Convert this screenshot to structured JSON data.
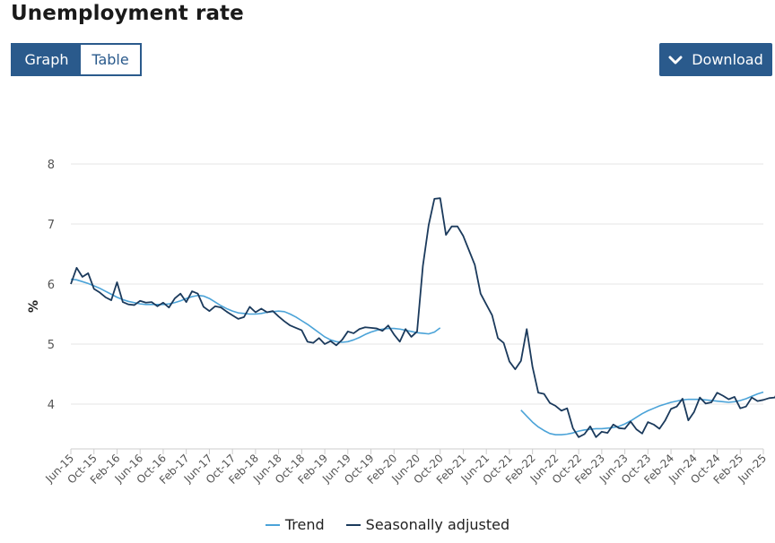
{
  "header": {
    "title": "Unemployment rate"
  },
  "toolbar": {
    "graph_label": "Graph",
    "table_label": "Table",
    "download_label": "Download"
  },
  "colors": {
    "accent": "#2a5a8c",
    "trend": "#4ba3d8",
    "seasonally_adjusted": "#1b3a5c",
    "grid": "#e6e6e6"
  },
  "legend": {
    "trend_label": "Trend",
    "sa_label": "Seasonally adjusted"
  },
  "chart_data": {
    "type": "line",
    "title": "Unemployment rate",
    "xlabel": "",
    "ylabel": "%",
    "ylim": [
      3.25,
      8
    ],
    "yticks": [
      4,
      5,
      6,
      7,
      8
    ],
    "grid": true,
    "legend_position": "bottom",
    "x_start": "Jun-15",
    "x_end": "Jun-25",
    "x_ticks": [
      "Jun-15",
      "Oct-15",
      "Feb-16",
      "Jun-16",
      "Oct-16",
      "Feb-17",
      "Jun-17",
      "Oct-17",
      "Feb-18",
      "Jun-18",
      "Oct-18",
      "Feb-19",
      "Jun-19",
      "Oct-19",
      "Feb-20",
      "Jun-20",
      "Oct-20",
      "Feb-21",
      "Jun-21",
      "Oct-21",
      "Feb-22",
      "Jun-22",
      "Oct-22",
      "Feb-23",
      "Jun-23",
      "Oct-23",
      "Feb-24",
      "Jun-24",
      "Oct-24",
      "Feb-25",
      "Jun-25"
    ],
    "series": [
      {
        "name": "Trend",
        "color": "#4ba3d8",
        "values": [
          6.08,
          6.07,
          6.04,
          6.01,
          5.97,
          5.93,
          5.88,
          5.83,
          5.78,
          5.74,
          5.71,
          5.69,
          5.67,
          5.66,
          5.66,
          5.66,
          5.66,
          5.67,
          5.69,
          5.72,
          5.76,
          5.79,
          5.81,
          5.8,
          5.76,
          5.7,
          5.64,
          5.59,
          5.55,
          5.52,
          5.51,
          5.5,
          5.5,
          5.51,
          5.53,
          5.54,
          5.55,
          5.54,
          5.5,
          5.45,
          5.39,
          5.33,
          5.26,
          5.19,
          5.12,
          5.07,
          5.04,
          5.03,
          5.04,
          5.07,
          5.11,
          5.16,
          5.2,
          5.23,
          5.25,
          5.26,
          5.26,
          5.25,
          5.23,
          5.21,
          5.19,
          5.18,
          5.17,
          5.2,
          5.27
        ],
        "values_from_index": 0
      },
      {
        "name": "Trend",
        "color": "#4ba3d8",
        "segment": "second",
        "values": [
          3.9,
          3.8,
          3.7,
          3.62,
          3.56,
          3.51,
          3.49,
          3.49,
          3.5,
          3.52,
          3.55,
          3.57,
          3.58,
          3.59,
          3.59,
          3.6,
          3.61,
          3.63,
          3.67,
          3.72,
          3.78,
          3.84,
          3.89,
          3.93,
          3.97,
          4.0,
          4.03,
          4.05,
          4.07,
          4.08,
          4.08,
          4.08,
          4.07,
          4.06,
          4.05,
          4.04,
          4.03,
          4.04,
          4.06,
          4.09,
          4.13,
          4.17,
          4.2
        ],
        "values_from_index": 78
      },
      {
        "name": "Seasonally adjusted",
        "color": "#1b3a5c",
        "values": [
          6.0,
          6.27,
          6.12,
          6.18,
          5.92,
          5.86,
          5.78,
          5.73,
          6.03,
          5.7,
          5.66,
          5.65,
          5.72,
          5.69,
          5.7,
          5.63,
          5.69,
          5.61,
          5.76,
          5.84,
          5.7,
          5.88,
          5.84,
          5.62,
          5.55,
          5.63,
          5.61,
          5.54,
          5.48,
          5.42,
          5.45,
          5.62,
          5.53,
          5.59,
          5.53,
          5.55,
          5.46,
          5.38,
          5.31,
          5.27,
          5.23,
          5.04,
          5.02,
          5.1,
          5.0,
          5.05,
          4.98,
          5.07,
          5.21,
          5.18,
          5.25,
          5.28,
          5.27,
          5.26,
          5.22,
          5.31,
          5.16,
          5.04,
          5.25,
          5.12,
          5.21,
          6.3,
          6.98,
          7.42,
          7.43,
          6.82,
          6.96,
          6.96,
          6.8,
          6.56,
          6.32,
          5.84,
          5.66,
          5.48,
          5.1,
          5.02,
          4.71,
          4.58,
          4.72,
          5.25,
          4.62,
          4.19,
          4.17,
          4.02,
          3.97,
          3.89,
          3.93,
          3.6,
          3.45,
          3.5,
          3.63,
          3.45,
          3.54,
          3.52,
          3.66,
          3.6,
          3.59,
          3.71,
          3.58,
          3.51,
          3.7,
          3.66,
          3.59,
          3.73,
          3.92,
          3.96,
          4.09,
          3.73,
          3.87,
          4.11,
          4.01,
          4.03,
          4.19,
          4.14,
          4.08,
          4.12,
          3.93,
          3.96,
          4.11,
          4.05,
          4.07,
          4.1,
          4.11,
          4.31
        ]
      }
    ]
  }
}
